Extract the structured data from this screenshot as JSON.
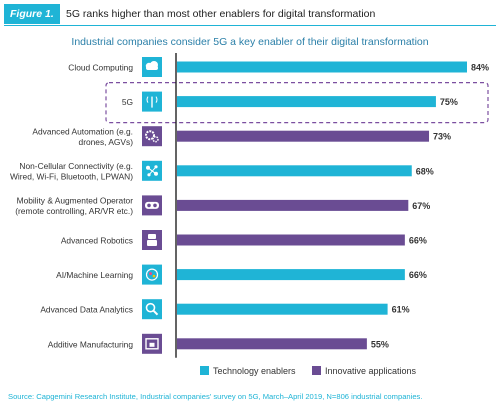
{
  "figure": {
    "label": "Figure 1.",
    "title": "5G ranks higher than most other enablers for digital transformation"
  },
  "source": "Source: Capgemini Research Institute, Industrial companies' survey on 5G, March–April 2019, N=806 industrial companies.",
  "colors": {
    "technology": "#1fb4d6",
    "innovative": "#6a4c93",
    "highlight": "#7b4fa0"
  },
  "chart_data": {
    "type": "bar",
    "orientation": "horizontal",
    "title": "Industrial companies consider 5G a key enabler of their digital transformation",
    "categories": [
      [
        "Cloud Computing"
      ],
      [
        "5G"
      ],
      [
        "Advanced Automation (e.g.",
        "drones, AGVs)"
      ],
      [
        "Non-Cellular Connectivity (e.g.",
        "Wired, Wi-Fi, Bluetooth, LPWAN)"
      ],
      [
        "Mobility & Augmented Operator",
        "(remote controlling, AR/VR etc.)"
      ],
      [
        "Advanced Robotics"
      ],
      [
        "AI/Machine Learning"
      ],
      [
        "Advanced Data Analytics"
      ],
      [
        "Additive Manufacturing"
      ]
    ],
    "values": [
      84,
      75,
      73,
      68,
      67,
      66,
      66,
      61,
      55
    ],
    "value_labels": [
      "84%",
      "75%",
      "73%",
      "68%",
      "67%",
      "66%",
      "66%",
      "61%",
      "55%"
    ],
    "groups": [
      "technology",
      "technology",
      "innovative",
      "technology",
      "innovative",
      "innovative",
      "technology",
      "technology",
      "innovative"
    ],
    "icons": [
      "cloud-icon",
      "antenna-icon",
      "gears-icon",
      "network-icon",
      "vr-headset-icon",
      "robot-icon",
      "ai-icon",
      "analytics-icon",
      "printer-3d-icon"
    ],
    "highlighted": "5G",
    "xlim": [
      0,
      84
    ],
    "legend": [
      {
        "key": "technology",
        "label": "Technology enablers"
      },
      {
        "key": "innovative",
        "label": "Innovative applications"
      }
    ],
    "legend_position": "bottom-center",
    "grid": false
  }
}
